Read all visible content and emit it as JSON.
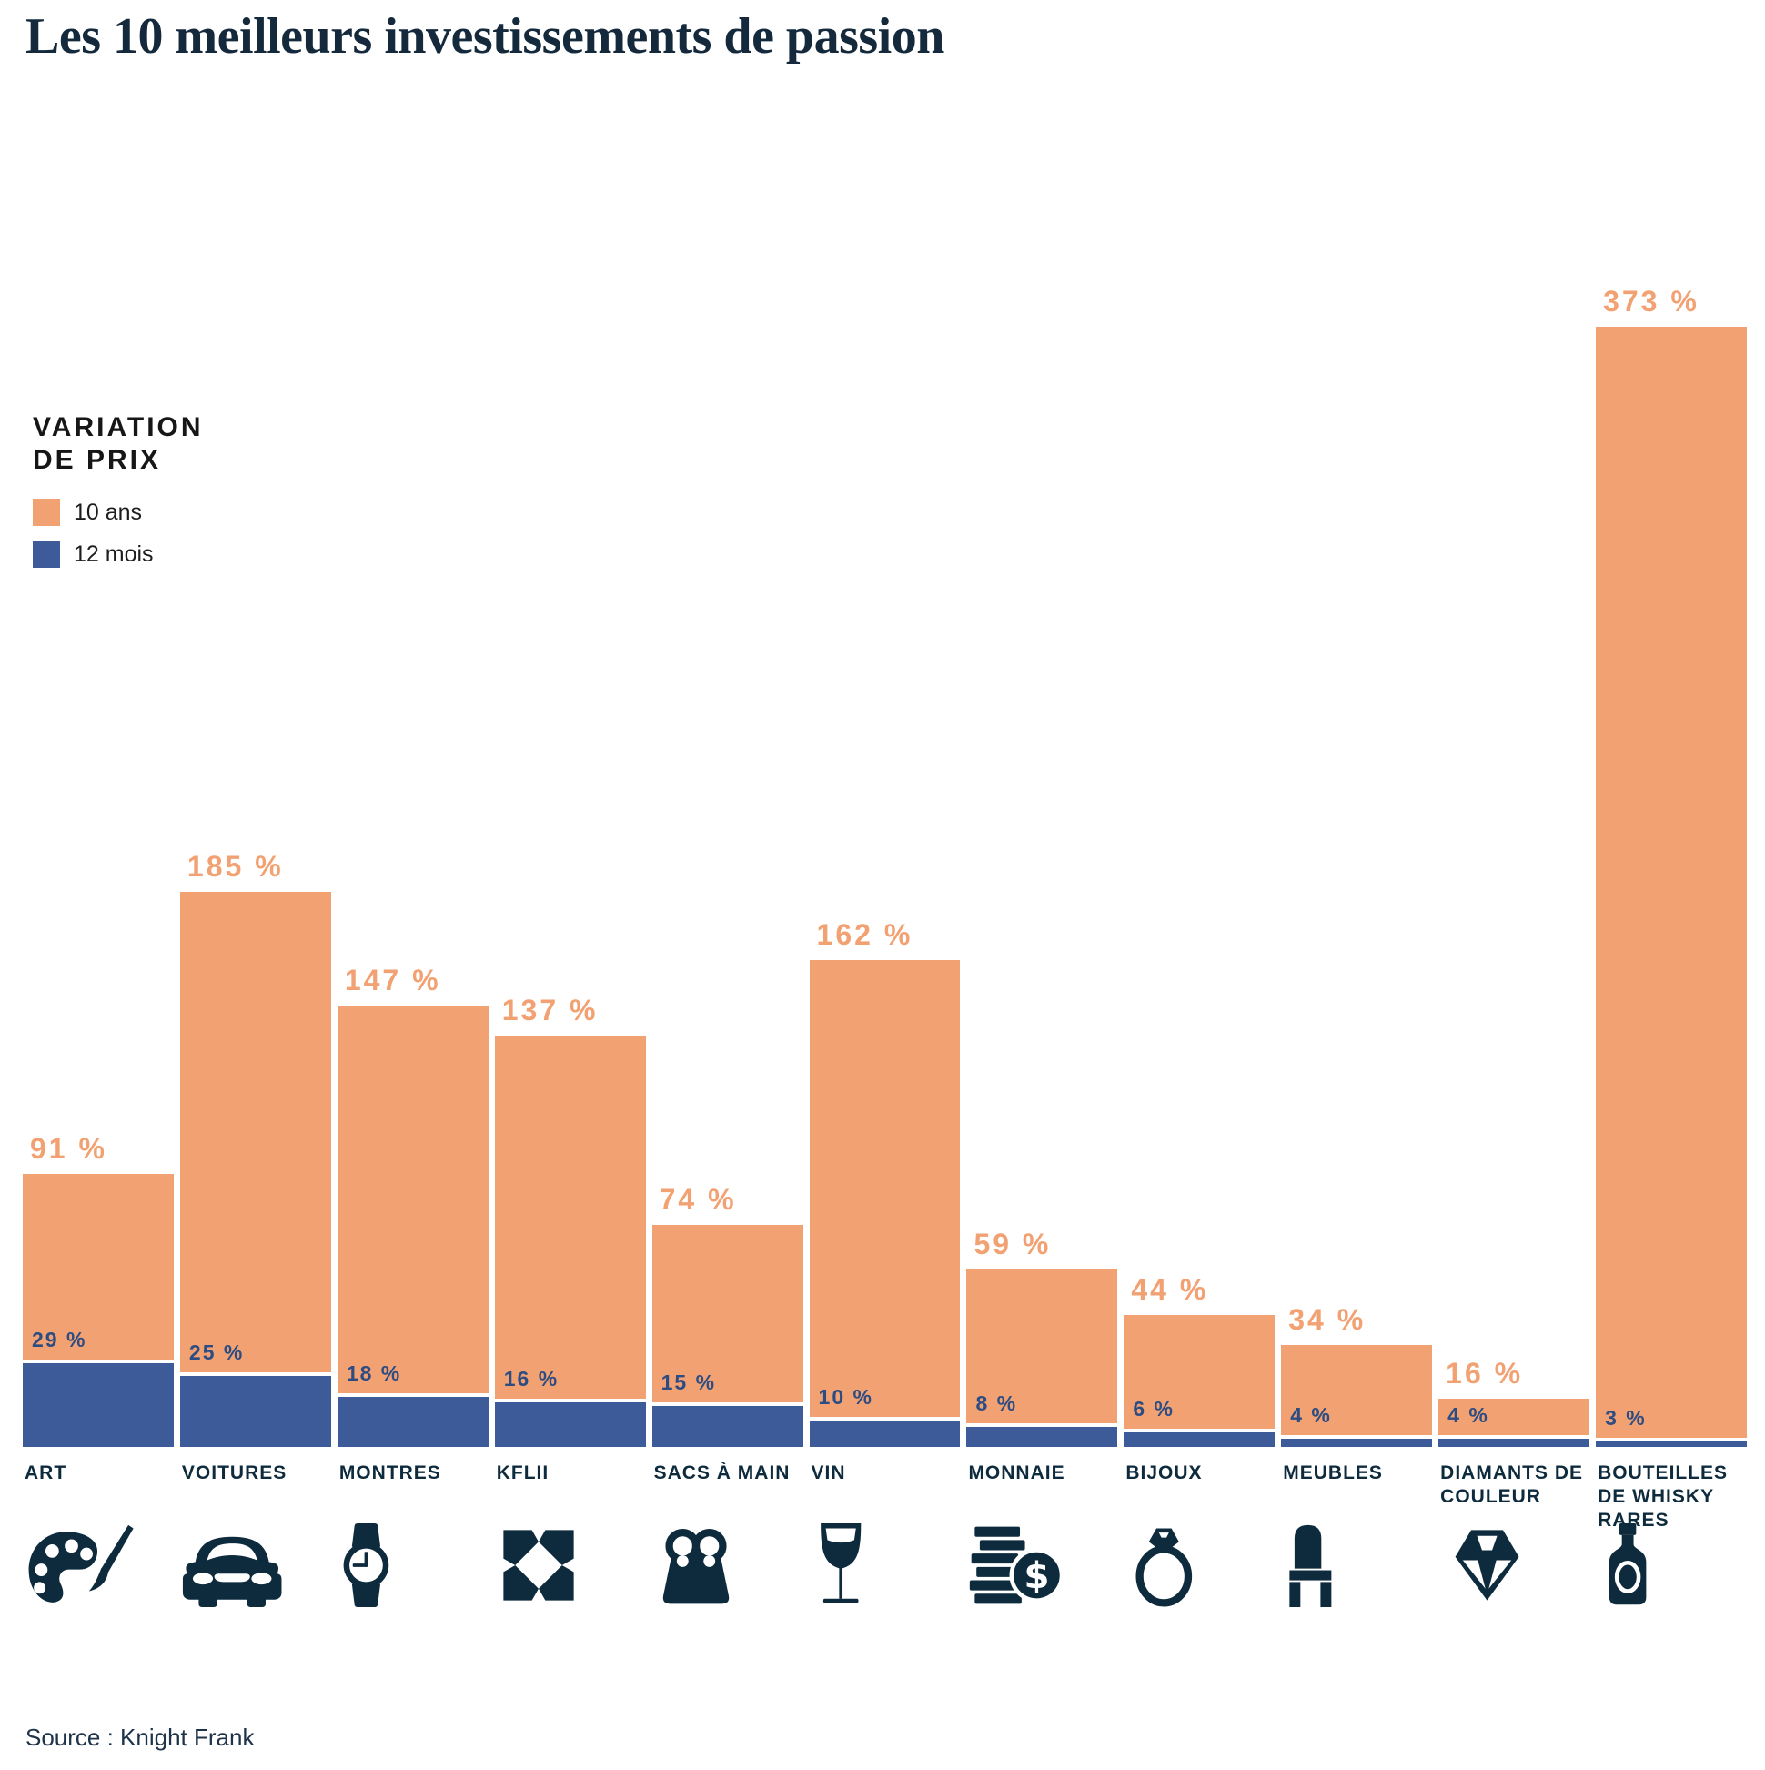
{
  "title": "Les 10 meilleurs investissements de passion",
  "legend": {
    "title": "VARIATION DE PRIX",
    "title_lines": [
      "VARIATION",
      "DE PRIX"
    ],
    "items": [
      {
        "label": "10 ans",
        "color": "#F2A173"
      },
      {
        "label": "12 mois",
        "color": "#3D5B99"
      }
    ]
  },
  "source": "Source : Knight Frank",
  "colors": {
    "bar_10yr": "#F2A173",
    "bar_12mo": "#3D5B99",
    "label_10yr": "#F2A173",
    "label_12mo": "#2D4C82",
    "text_navy": "#0E2B3E",
    "background": "#FFFFFF"
  },
  "chart_data": {
    "type": "bar",
    "title": "Les 10 meilleurs investissements de passion",
    "unit": "%",
    "ylim": [
      0,
      390
    ],
    "grid": false,
    "legend_position": "upper-left",
    "series": [
      {
        "name": "10 ans",
        "values": [
          91,
          185,
          147,
          137,
          74,
          162,
          59,
          44,
          34,
          16,
          373
        ]
      },
      {
        "name": "12 mois",
        "values": [
          29,
          25,
          18,
          16,
          15,
          10,
          8,
          6,
          4,
          4,
          3
        ]
      }
    ],
    "categories": [
      {
        "label": "ART",
        "icon": "palette",
        "v10": 91,
        "v12": 29,
        "label10": "91 %",
        "label12": "29 %"
      },
      {
        "label": "VOITURES",
        "icon": "car",
        "v10": 185,
        "v12": 25,
        "label10": "185 %",
        "label12": "25 %"
      },
      {
        "label": "MONTRES",
        "icon": "watch",
        "v10": 147,
        "v12": 18,
        "label10": "147 %",
        "label12": "18 %"
      },
      {
        "label": "KFLII",
        "icon": "kflii-logo",
        "v10": 137,
        "v12": 16,
        "label10": "137 %",
        "label12": "16 %"
      },
      {
        "label": "SACS À MAIN",
        "icon": "handbag",
        "v10": 74,
        "v12": 15,
        "label10": "74 %",
        "label12": "15 %"
      },
      {
        "label": "VIN",
        "icon": "wine-glass",
        "v10": 162,
        "v12": 10,
        "label10": "162 %",
        "label12": "10 %"
      },
      {
        "label": "MONNAIE",
        "icon": "coins",
        "v10": 59,
        "v12": 8,
        "label10": "59 %",
        "label12": "8 %"
      },
      {
        "label": "BIJOUX",
        "icon": "ring",
        "v10": 44,
        "v12": 6,
        "label10": "44 %",
        "label12": "6 %"
      },
      {
        "label": "MEUBLES",
        "icon": "chair",
        "v10": 34,
        "v12": 4,
        "label10": "34 %",
        "label12": "4 %"
      },
      {
        "label": "DIAMANTS DE COULEUR",
        "icon": "diamond",
        "v10": 16,
        "v12": 4,
        "label10": "16 %",
        "label12": "4 %"
      },
      {
        "label": "BOUTEILLES DE WHISKY RARES",
        "icon": "whisky-bottle",
        "v10": 373,
        "v12": 3,
        "label10": "373 %",
        "label12": "3 %"
      }
    ]
  }
}
